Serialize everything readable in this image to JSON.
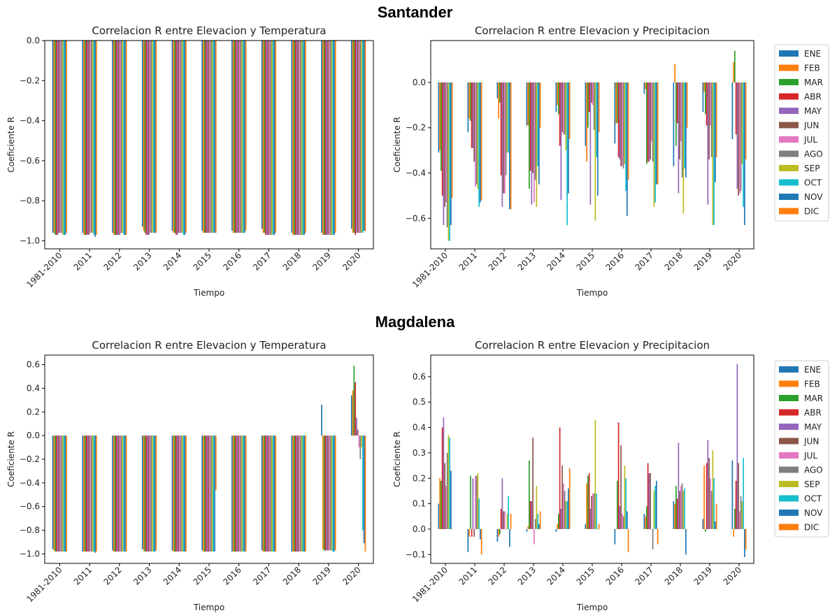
{
  "regions": [
    {
      "title": "Santander"
    },
    {
      "title": "Magdalena"
    }
  ],
  "colors": [
    "#1f77b4",
    "#ff7f0e",
    "#2ca02c",
    "#d62728",
    "#9467bd",
    "#8c564b",
    "#e377c2",
    "#7f7f7f",
    "#bcbd22",
    "#17becf",
    "#1f77b4",
    "#ff7f0e"
  ],
  "chart_data": [
    {
      "region": "Santander",
      "type": "bar",
      "title": "Correlacion R entre Elevacion y Temperatura",
      "xlabel": "Tiempo",
      "ylabel": "Coeficiente R",
      "ylim": [
        -1.04,
        0.0
      ],
      "yticks": [
        0.0,
        -0.2,
        -0.4,
        -0.6,
        -0.8,
        -1.0
      ],
      "tick_labels": [
        "0.0",
        "−0.2",
        "−0.4",
        "−0.6",
        "−0.8",
        "−1.0"
      ],
      "categories": [
        "1981-2010",
        "2011",
        "2012",
        "2013",
        "2014",
        "2015",
        "2016",
        "2017",
        "2018",
        "2019",
        "2020"
      ],
      "legend": "none",
      "series": [
        {
          "name": "ENE",
          "values": [
            -0.96,
            -0.96,
            -0.96,
            -0.93,
            -0.95,
            -0.95,
            -0.95,
            -0.94,
            -0.96,
            -0.96,
            -0.94
          ]
        },
        {
          "name": "FEB",
          "values": [
            -0.96,
            -0.97,
            -0.97,
            -0.95,
            -0.96,
            -0.96,
            -0.96,
            -0.96,
            -0.97,
            -0.97,
            -0.96
          ]
        },
        {
          "name": "MAR",
          "values": [
            -0.97,
            -0.97,
            -0.97,
            -0.96,
            -0.96,
            -0.96,
            -0.96,
            -0.96,
            -0.97,
            -0.97,
            -0.96
          ]
        },
        {
          "name": "ABR",
          "values": [
            -0.97,
            -0.97,
            -0.97,
            -0.97,
            -0.97,
            -0.96,
            -0.96,
            -0.97,
            -0.97,
            -0.97,
            -0.97
          ]
        },
        {
          "name": "MAY",
          "values": [
            -0.97,
            -0.97,
            -0.97,
            -0.97,
            -0.97,
            -0.96,
            -0.96,
            -0.97,
            -0.97,
            -0.97,
            -0.96
          ]
        },
        {
          "name": "JUN",
          "values": [
            -0.96,
            -0.97,
            -0.97,
            -0.97,
            -0.96,
            -0.96,
            -0.96,
            -0.97,
            -0.97,
            -0.97,
            -0.96
          ]
        },
        {
          "name": "JUL",
          "values": [
            -0.96,
            -0.96,
            -0.97,
            -0.96,
            -0.96,
            -0.96,
            -0.96,
            -0.97,
            -0.97,
            -0.97,
            -0.96
          ]
        },
        {
          "name": "AGO",
          "values": [
            -0.96,
            -0.96,
            -0.96,
            -0.96,
            -0.96,
            -0.96,
            -0.96,
            -0.97,
            -0.97,
            -0.97,
            -0.96
          ]
        },
        {
          "name": "SEP",
          "values": [
            -0.97,
            -0.96,
            -0.96,
            -0.96,
            -0.96,
            -0.96,
            -0.96,
            -0.97,
            -0.97,
            -0.97,
            -0.96
          ]
        },
        {
          "name": "OCT",
          "values": [
            -0.97,
            -0.97,
            -0.97,
            -0.96,
            -0.97,
            -0.96,
            -0.96,
            -0.97,
            -0.97,
            -0.97,
            -0.96
          ]
        },
        {
          "name": "NOV",
          "values": [
            -0.97,
            -0.98,
            -0.97,
            -0.96,
            -0.97,
            -0.96,
            -0.96,
            -0.97,
            -0.97,
            -0.97,
            -0.95
          ]
        },
        {
          "name": "DIC",
          "values": [
            -0.96,
            -0.97,
            -0.97,
            -0.96,
            -0.96,
            -0.96,
            -0.95,
            -0.96,
            -0.96,
            -0.96,
            -0.95
          ]
        }
      ]
    },
    {
      "region": "Santander",
      "type": "bar",
      "title": "Correlacion R entre Elevacion y Precipitacion",
      "xlabel": "Tiempo",
      "ylabel": "Coeficiente R",
      "ylim": [
        -0.735,
        0.185
      ],
      "yticks": [
        0.0,
        -0.2,
        -0.4,
        -0.6
      ],
      "tick_labels": [
        "0.0",
        "−0.2",
        "−0.4",
        "−0.6"
      ],
      "categories": [
        "1981-2010",
        "2011",
        "2012",
        "2013",
        "2014",
        "2015",
        "2016",
        "2017",
        "2018",
        "2019",
        "2020"
      ],
      "legend": "right",
      "series": [
        {
          "name": "ENE",
          "values": [
            -0.31,
            -0.22,
            -0.07,
            -0.19,
            -0.13,
            -0.28,
            -0.27,
            -0.05,
            -0.37,
            -0.13,
            -0.25
          ]
        },
        {
          "name": "FEB",
          "values": [
            -0.3,
            -0.16,
            -0.16,
            -0.19,
            -0.1,
            -0.35,
            -0.18,
            -0.03,
            0.08,
            -0.04,
            0.09
          ]
        },
        {
          "name": "MAR",
          "values": [
            -0.39,
            -0.17,
            -0.09,
            -0.47,
            -0.14,
            -0.2,
            -0.18,
            -0.36,
            -0.28,
            -0.14,
            0.14
          ]
        },
        {
          "name": "ABR",
          "values": [
            -0.5,
            -0.29,
            -0.41,
            -0.39,
            -0.28,
            -0.13,
            -0.33,
            -0.35,
            -0.18,
            -0.19,
            -0.23
          ]
        },
        {
          "name": "MAY",
          "values": [
            -0.63,
            -0.29,
            -0.55,
            -0.54,
            -0.52,
            -0.54,
            -0.34,
            -0.35,
            -0.49,
            -0.54,
            -0.47
          ]
        },
        {
          "name": "JUN",
          "values": [
            -0.55,
            -0.35,
            -0.49,
            -0.4,
            -0.22,
            -0.09,
            -0.37,
            -0.34,
            -0.34,
            -0.34,
            -0.5
          ]
        },
        {
          "name": "JUL",
          "values": [
            -0.53,
            -0.46,
            -0.49,
            -0.53,
            -0.23,
            -0.1,
            -0.37,
            -0.26,
            -0.26,
            -0.19,
            -0.49
          ]
        },
        {
          "name": "AGO",
          "values": [
            -0.64,
            -0.45,
            -0.41,
            -0.43,
            -0.23,
            -0.21,
            -0.38,
            -0.35,
            -0.42,
            -0.33,
            -0.48
          ]
        },
        {
          "name": "SEP",
          "values": [
            -0.7,
            -0.47,
            -0.31,
            -0.55,
            -0.3,
            -0.61,
            -0.36,
            -0.55,
            -0.58,
            -0.63,
            -0.36
          ]
        },
        {
          "name": "OCT",
          "values": [
            -0.7,
            -0.55,
            -0.31,
            -0.37,
            -0.63,
            -0.33,
            -0.48,
            -0.53,
            -0.38,
            -0.63,
            -0.55
          ]
        },
        {
          "name": "NOV",
          "values": [
            -0.63,
            -0.53,
            -0.56,
            -0.45,
            -0.49,
            -0.5,
            -0.59,
            -0.45,
            -0.42,
            -0.44,
            -0.63
          ]
        },
        {
          "name": "DIC",
          "values": [
            -0.51,
            -0.52,
            -0.56,
            -0.2,
            -0.25,
            -0.22,
            -0.43,
            -0.45,
            -0.2,
            -0.33,
            -0.34
          ]
        }
      ]
    },
    {
      "region": "Magdalena",
      "type": "bar",
      "title": "Correlacion R entre Elevacion y Temperatura",
      "xlabel": "Tiempo",
      "ylabel": "Coeficiente R",
      "ylim": [
        -1.08,
        0.68
      ],
      "yticks": [
        0.6,
        0.4,
        0.2,
        0.0,
        -0.2,
        -0.4,
        -0.6,
        -0.8,
        -1.0
      ],
      "tick_labels": [
        "0.6",
        "0.4",
        "0.2",
        "0.0",
        "−0.2",
        "−0.4",
        "−0.6",
        "−0.8",
        "−1.0"
      ],
      "categories": [
        "1981-2010",
        "2011",
        "2012",
        "2013",
        "2014",
        "2015",
        "2016",
        "2017",
        "2018",
        "2019",
        "2020"
      ],
      "legend": "none",
      "series": [
        {
          "name": "ENE",
          "values": [
            -0.96,
            -0.98,
            -0.97,
            -0.96,
            -0.97,
            -0.97,
            -0.98,
            -0.97,
            -0.98,
            0.26,
            0.34
          ]
        },
        {
          "name": "FEB",
          "values": [
            -0.97,
            -0.98,
            -0.98,
            -0.97,
            -0.98,
            -0.98,
            -0.98,
            -0.98,
            -0.98,
            -0.96,
            0.38
          ]
        },
        {
          "name": "MAR",
          "values": [
            -0.98,
            -0.98,
            -0.98,
            -0.98,
            -0.98,
            -0.98,
            -0.98,
            -0.98,
            -0.98,
            -0.97,
            0.59
          ]
        },
        {
          "name": "ABR",
          "values": [
            -0.98,
            -0.98,
            -0.98,
            -0.98,
            -0.98,
            -0.98,
            -0.98,
            -0.98,
            -0.98,
            -0.97,
            0.45
          ]
        },
        {
          "name": "MAY",
          "values": [
            -0.98,
            -0.98,
            -0.98,
            -0.98,
            -0.98,
            -0.98,
            -0.98,
            -0.98,
            -0.98,
            -0.97,
            0.15
          ]
        },
        {
          "name": "JUN",
          "values": [
            -0.98,
            -0.98,
            -0.98,
            -0.98,
            -0.98,
            -0.98,
            -0.98,
            -0.98,
            -0.98,
            -0.97,
            0.05
          ]
        },
        {
          "name": "JUL",
          "values": [
            -0.98,
            -0.98,
            -0.98,
            -0.98,
            -0.98,
            -0.98,
            -0.98,
            -0.98,
            -0.98,
            -0.97,
            -0.1
          ]
        },
        {
          "name": "AGO",
          "values": [
            -0.98,
            -0.98,
            -0.98,
            -0.98,
            -0.98,
            -0.98,
            -0.98,
            -0.98,
            -0.98,
            -0.97,
            -0.2
          ]
        },
        {
          "name": "SEP",
          "values": [
            -0.98,
            -0.98,
            -0.98,
            -0.98,
            -0.98,
            -0.98,
            -0.98,
            -0.98,
            -0.98,
            -0.97,
            -0.1
          ]
        },
        {
          "name": "OCT",
          "values": [
            -0.98,
            -0.98,
            -0.98,
            -0.98,
            -0.98,
            -0.98,
            -0.98,
            -0.98,
            -0.98,
            -0.98,
            -0.8
          ]
        },
        {
          "name": "NOV",
          "values": [
            -0.98,
            -0.99,
            -0.98,
            -0.98,
            -0.98,
            -0.98,
            -0.98,
            -0.98,
            -0.98,
            -0.98,
            -0.91
          ]
        },
        {
          "name": "DIC",
          "values": [
            -0.98,
            -0.98,
            -0.98,
            -0.97,
            -0.98,
            -0.46,
            -0.98,
            -0.98,
            -0.98,
            -0.97,
            -0.98
          ]
        }
      ]
    },
    {
      "region": "Magdalena",
      "type": "bar",
      "title": "Correlacion R entre Elevacion y Precipitacion",
      "xlabel": "Tiempo",
      "ylabel": "Coeficiente R",
      "ylim": [
        -0.135,
        0.685
      ],
      "yticks": [
        0.6,
        0.5,
        0.4,
        0.3,
        0.2,
        0.1,
        0.0,
        -0.1
      ],
      "tick_labels": [
        "0.6",
        "0.5",
        "0.4",
        "0.3",
        "0.2",
        "0.1",
        "0.0",
        "−0.1"
      ],
      "categories": [
        "1981-2010",
        "2011",
        "2012",
        "2013",
        "2014",
        "2015",
        "2016",
        "2017",
        "2018",
        "2019",
        "2020"
      ],
      "legend": "right",
      "series": [
        {
          "name": "ENE",
          "values": [
            0.1,
            -0.09,
            -0.05,
            -0.01,
            -0.01,
            0.02,
            -0.06,
            0.06,
            0.11,
            0.04,
            0.27
          ]
        },
        {
          "name": "FEB",
          "values": [
            0.2,
            -0.03,
            -0.03,
            0.01,
            0.02,
            0.18,
            0.0,
            0.05,
            0.1,
            0.25,
            -0.03
          ]
        },
        {
          "name": "MAR",
          "values": [
            0.19,
            0.21,
            -0.02,
            0.27,
            0.06,
            0.21,
            0.19,
            0.09,
            0.17,
            -0.01,
            0.08
          ]
        },
        {
          "name": "ABR",
          "values": [
            0.4,
            -0.03,
            0.08,
            0.11,
            0.4,
            0.22,
            0.42,
            0.26,
            0.12,
            0.26,
            0.19
          ]
        },
        {
          "name": "MAY",
          "values": [
            0.44,
            0.2,
            0.2,
            0.11,
            0.08,
            0.08,
            0.09,
            0.22,
            0.34,
            0.35,
            0.65
          ]
        },
        {
          "name": "JUN",
          "values": [
            0.26,
            -0.03,
            0.07,
            0.36,
            0.25,
            0.13,
            0.33,
            0.22,
            0.15,
            0.28,
            0.26
          ]
        },
        {
          "name": "JUL",
          "values": [
            0.17,
            0.21,
            0.07,
            -0.06,
            0.18,
            0.14,
            0.06,
            0.0,
            0.17,
            0.2,
            0.07
          ]
        },
        {
          "name": "AGO",
          "values": [
            0.3,
            0.21,
            0.0,
            0.04,
            0.15,
            0.14,
            0.05,
            -0.08,
            0.18,
            0.15,
            0.13
          ]
        },
        {
          "name": "SEP",
          "values": [
            0.37,
            0.22,
            0.06,
            0.17,
            0.11,
            0.43,
            0.25,
            0.15,
            0.15,
            0.31,
            0.11
          ]
        },
        {
          "name": "OCT",
          "values": [
            0.36,
            0.12,
            0.13,
            0.06,
            0.11,
            0.14,
            0.2,
            0.17,
            0.16,
            0.2,
            0.28
          ]
        },
        {
          "name": "NOV",
          "values": [
            0.23,
            -0.04,
            -0.07,
            0.02,
            0.16,
            0.0,
            0.07,
            0.19,
            -0.1,
            0.03,
            -0.11
          ]
        },
        {
          "name": "DIC",
          "values": [
            0.0,
            -0.1,
            0.06,
            0.07,
            0.24,
            0.02,
            -0.09,
            -0.06,
            0.0,
            0.1,
            -0.08
          ]
        }
      ]
    }
  ]
}
